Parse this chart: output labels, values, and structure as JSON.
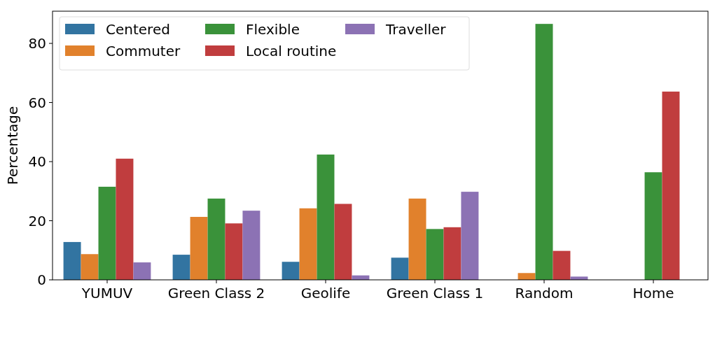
{
  "chart_data": {
    "type": "bar",
    "ylabel": "Percentage",
    "categories": [
      "YUMUV",
      "Green Class 2",
      "Geolife",
      "Green Class 1",
      "Random",
      "Home"
    ],
    "series": [
      {
        "name": "Centered",
        "color": "#3274a1",
        "values": [
          12.8,
          8.5,
          6.1,
          7.5,
          0,
          0
        ]
      },
      {
        "name": "Commuter",
        "color": "#e1812c",
        "values": [
          8.7,
          21.3,
          24.2,
          27.5,
          2.3,
          0
        ]
      },
      {
        "name": "Flexible",
        "color": "#3a923a",
        "values": [
          31.5,
          27.5,
          42.4,
          17.2,
          86.6,
          36.4
        ]
      },
      {
        "name": "Local routine",
        "color": "#c03d3e",
        "values": [
          41.0,
          19.1,
          25.7,
          17.8,
          9.8,
          63.7
        ]
      },
      {
        "name": "Traveller",
        "color": "#8c72b4",
        "values": [
          5.9,
          23.4,
          1.5,
          29.8,
          1.1,
          0
        ]
      }
    ],
    "ylim": [
      0,
      90.9
    ],
    "yticks": [
      0,
      20,
      40,
      60,
      80
    ],
    "grid": false,
    "legend": "top left"
  }
}
